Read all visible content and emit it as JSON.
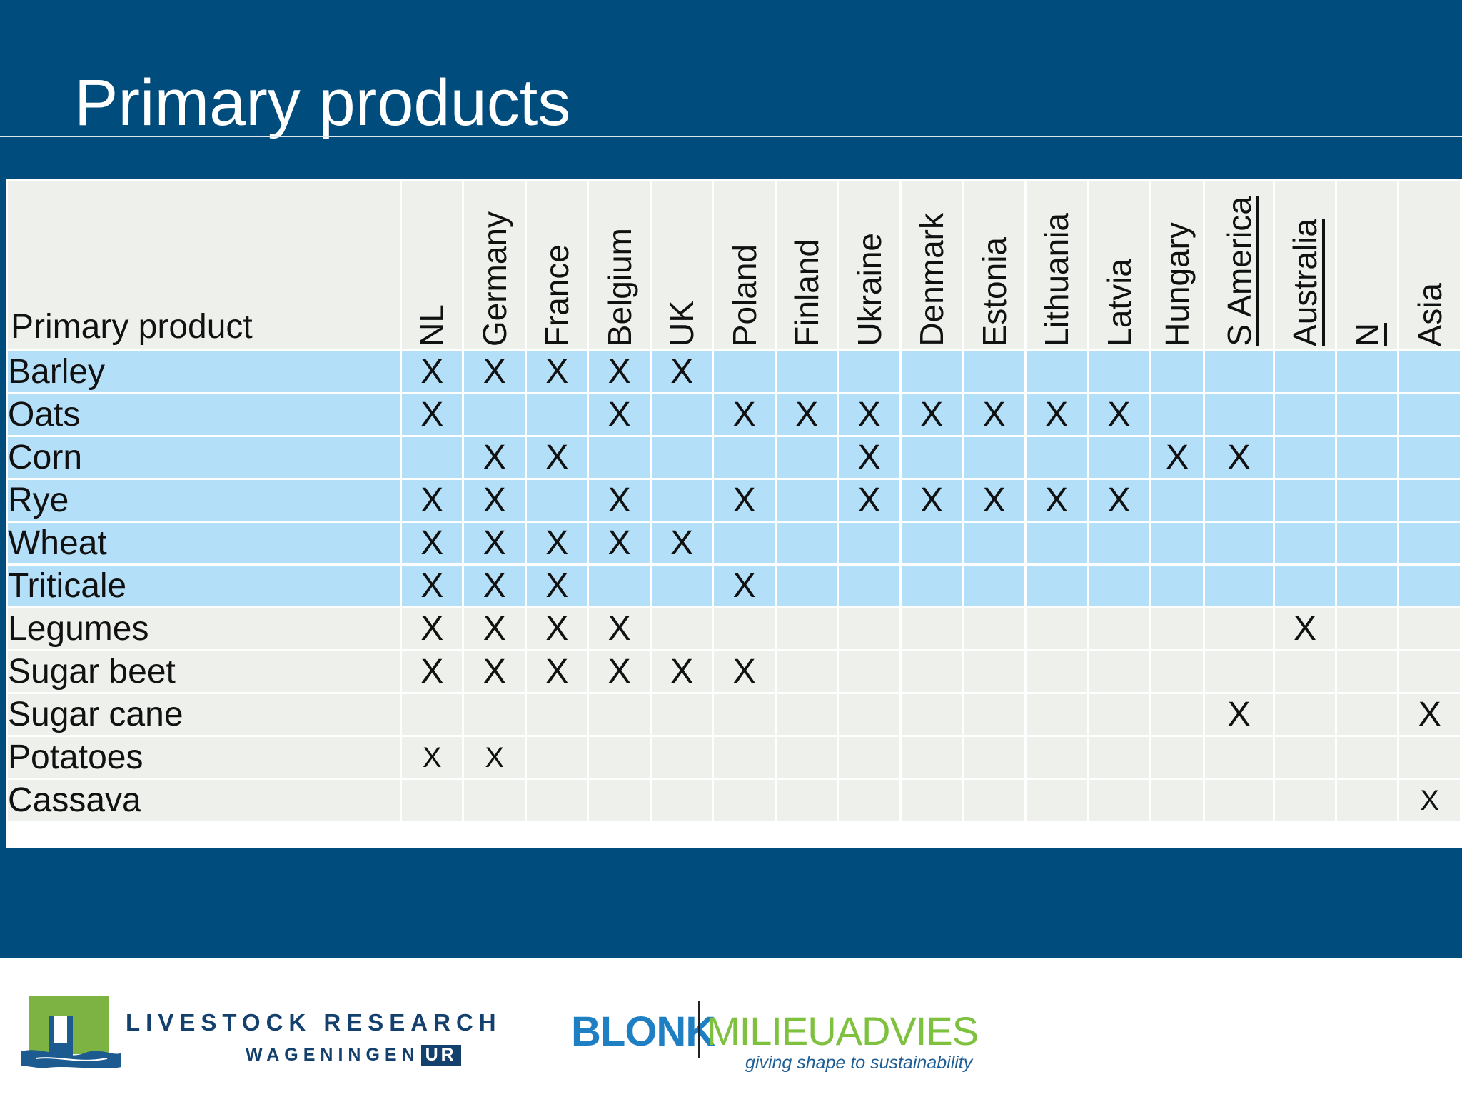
{
  "slide": {
    "title": "Primary products"
  },
  "table": {
    "corner_label": "Primary product",
    "columns": [
      "NL",
      "Germany",
      "France",
      "Belgium",
      "UK",
      "Poland",
      "Finland",
      "Ukraine",
      "Denmark",
      "Estonia",
      "Lithuania",
      "Latvia",
      "Hungary",
      "S America",
      "Australia",
      "N",
      "Asia"
    ],
    "rows": [
      {
        "label": "Barley",
        "marks": [
          "X",
          "X",
          "X",
          "X",
          "X",
          "",
          "",
          "",
          "",
          "",
          "",
          "",
          "",
          "",
          "",
          "",
          ""
        ]
      },
      {
        "label": "Oats",
        "marks": [
          "X",
          "",
          "",
          "X",
          "",
          "X",
          "X",
          "X",
          "X",
          "X",
          "X",
          "X",
          "",
          "",
          "",
          "",
          ""
        ]
      },
      {
        "label": "Corn",
        "marks": [
          "",
          "X",
          "X",
          "",
          "",
          "",
          "",
          "X",
          "",
          "",
          "",
          "",
          "X",
          "X",
          "",
          "",
          ""
        ]
      },
      {
        "label": "Rye",
        "marks": [
          "X",
          "X",
          "",
          "X",
          "",
          "X",
          "",
          "X",
          "X",
          "X",
          "X",
          "X",
          "",
          "",
          "",
          "",
          ""
        ]
      },
      {
        "label": "Wheat",
        "marks": [
          "X",
          "X",
          "X",
          "X",
          "X",
          "",
          "",
          "",
          "",
          "",
          "",
          "",
          "",
          "",
          "",
          "",
          ""
        ]
      },
      {
        "label": "Triticale",
        "marks": [
          "X",
          "X",
          "X",
          "",
          "",
          "X",
          "",
          "",
          "",
          "",
          "",
          "",
          "",
          "",
          "",
          "",
          ""
        ]
      },
      {
        "label": "Legumes",
        "marks": [
          "X",
          "X",
          "X",
          "X",
          "",
          "",
          "",
          "",
          "",
          "",
          "",
          "",
          "",
          "",
          "X",
          "",
          ""
        ]
      },
      {
        "label": "Sugar beet",
        "marks": [
          "X",
          "X",
          "X",
          "X",
          "X",
          "X",
          "",
          "",
          "",
          "",
          "",
          "",
          "",
          "",
          "",
          "",
          ""
        ]
      },
      {
        "label": "Sugar cane",
        "marks": [
          "",
          "",
          "",
          "",
          "",
          "",
          "",
          "",
          "",
          "",
          "",
          "",
          "",
          "X",
          "",
          "",
          "X"
        ]
      },
      {
        "label": "Potatoes",
        "marks": [
          "X",
          "X",
          "",
          "",
          "",
          "",
          "",
          "",
          "",
          "",
          "",
          "",
          "",
          "",
          "",
          "",
          ""
        ]
      },
      {
        "label": "Cassava",
        "marks": [
          "",
          "",
          "",
          "",
          "",
          "",
          "",
          "",
          "",
          "",
          "",
          "",
          "",
          "",
          "",
          "",
          "X"
        ]
      }
    ]
  },
  "colors": {
    "slide_background": "#004c7c",
    "row_highlight": "#b3dff8",
    "row_plain": "#eef0eb"
  },
  "footer": {
    "livestock_line1": "LIVESTOCK RESEARCH",
    "livestock_line2": "WAGENINGEN",
    "livestock_ur": "UR",
    "blonk": "BLONK",
    "milieu": "MILIEUADVIES",
    "tagline": "giving shape to sustainability"
  }
}
